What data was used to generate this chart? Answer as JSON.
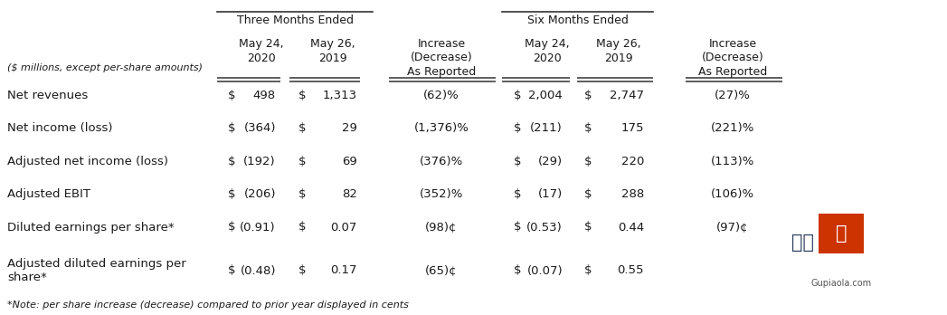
{
  "header_group1": "Three Months Ended",
  "header_group2": "Six Months Ended",
  "row_label_header": "($ millions, except per-share amounts)",
  "rows": [
    {
      "label": "Net revenues",
      "c1_s": "$",
      "c1_v": "498",
      "c2_s": "$",
      "c2_v": "1,313",
      "inc1": "(62)%",
      "c3_s": "$",
      "c3_v": "2,004",
      "c4_s": "$",
      "c4_v": "2,747",
      "inc2": "(27)%"
    },
    {
      "label": "Net income (loss)",
      "c1_s": "$",
      "c1_v": "(364)",
      "c2_s": "$",
      "c2_v": "29",
      "inc1": "(1,376)%",
      "c3_s": "$",
      "c3_v": "(211)",
      "c4_s": "$",
      "c4_v": "175",
      "inc2": "(221)%"
    },
    {
      "label": "Adjusted net income (loss)",
      "c1_s": "$",
      "c1_v": "(192)",
      "c2_s": "$",
      "c2_v": "69",
      "inc1": "(376)%",
      "c3_s": "$",
      "c3_v": "(29)",
      "c4_s": "$",
      "c4_v": "220",
      "inc2": "(113)%"
    },
    {
      "label": "Adjusted EBIT",
      "c1_s": "$",
      "c1_v": "(206)",
      "c2_s": "$",
      "c2_v": "82",
      "inc1": "(352)%",
      "c3_s": "$",
      "c3_v": "(17)",
      "c4_s": "$",
      "c4_v": "288",
      "inc2": "(106)%"
    },
    {
      "label": "Diluted earnings per share*",
      "c1_s": "$",
      "c1_v": "(0.91)",
      "c2_s": "$",
      "c2_v": "0.07",
      "inc1": "(98)¢",
      "c3_s": "$",
      "c3_v": "(0.53)",
      "c4_s": "$",
      "c4_v": "0.44",
      "inc2": "(97)¢"
    },
    {
      "label": "Adjusted diluted earnings per\nshare*",
      "c1_s": "$",
      "c1_v": "(0.48)",
      "c2_s": "$",
      "c2_v": "0.17",
      "inc1": "(65)¢",
      "c3_s": "$",
      "c3_v": "(0.07)",
      "c4_s": "$",
      "c4_v": "0.55",
      "inc2": ""
    }
  ],
  "footnote": "*Note: per share increase (decrease) compared to prior year displayed in cents",
  "bg_color": "#ffffff",
  "text_color": "#1a1a1a",
  "line_color": "#333333",
  "logo_text1": "股票",
  "logo_text2": "哒",
  "logo_sub": "Gupiaola.com",
  "logo_box_color": "#cc3300"
}
